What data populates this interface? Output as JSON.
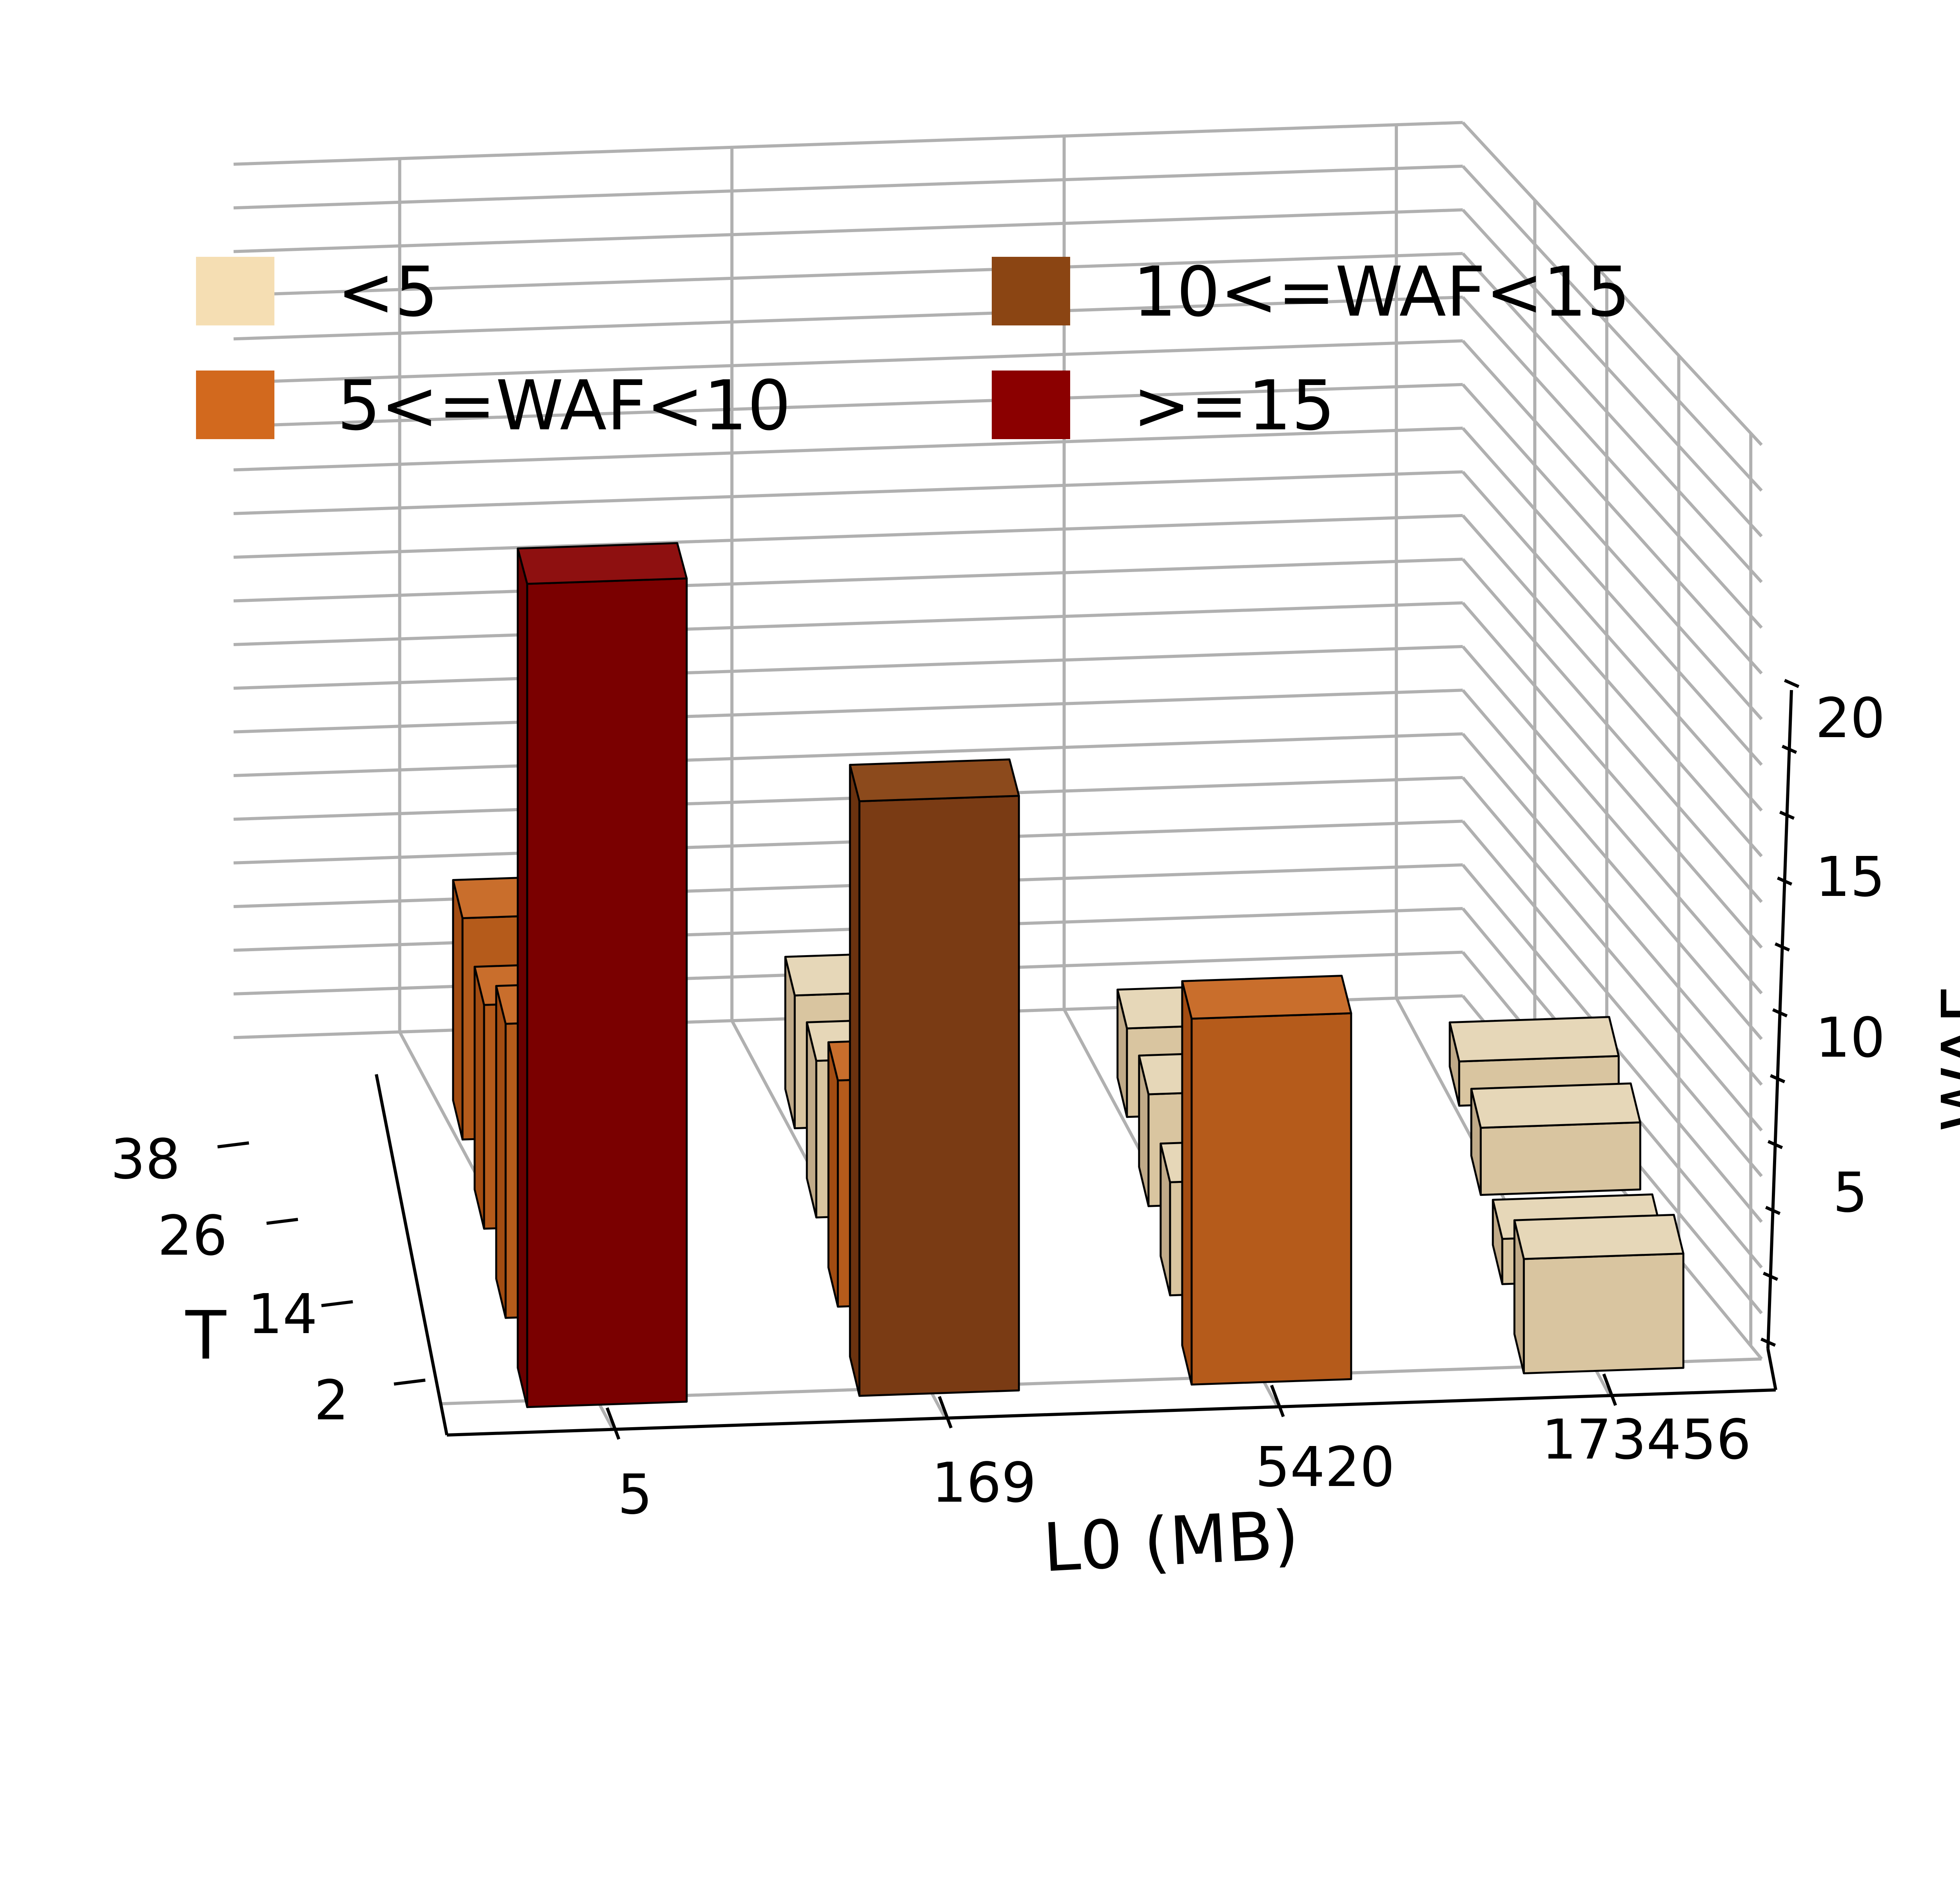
{
  "chart_data": {
    "type": "bar3d",
    "title": "",
    "xlabel": "L0 (MB)",
    "ylabel": "T",
    "zlabel": "WAF",
    "x_categories": [
      "5",
      "169",
      "5420",
      "173456"
    ],
    "y_categories": [
      "2",
      "14",
      "26",
      "38"
    ],
    "z_ticks": [
      "5",
      "10",
      "15",
      "20"
    ],
    "zlim": [
      0,
      21
    ],
    "grid": true,
    "legend_position": "top",
    "legend": [
      {
        "label": "<5",
        "color": "#f5deb3"
      },
      {
        "label": "10<=WAF<15",
        "color": "#8b4513"
      },
      {
        "label": "5<=WAF<10",
        "color": "#d2691e"
      },
      {
        "label": ">=15",
        "color": "#8b0000"
      }
    ],
    "bars": [
      {
        "x": "5",
        "t": "2",
        "waf": 19.0
      },
      {
        "x": "5",
        "t": "14",
        "waf": 7.5
      },
      {
        "x": "5",
        "t": "26",
        "waf": 6.0
      },
      {
        "x": "5",
        "t": "38",
        "waf": 6.0
      },
      {
        "x": "169",
        "t": "2",
        "waf": 14.0
      },
      {
        "x": "169",
        "t": "14",
        "waf": 6.0
      },
      {
        "x": "169",
        "t": "26",
        "waf": 4.5
      },
      {
        "x": "169",
        "t": "38",
        "waf": 4.0
      },
      {
        "x": "5420",
        "t": "2",
        "waf": 9.0
      },
      {
        "x": "5420",
        "t": "14",
        "waf": 3.5
      },
      {
        "x": "5420",
        "t": "26",
        "waf": 3.5
      },
      {
        "x": "5420",
        "t": "38",
        "waf": 3.0
      },
      {
        "x": "173456",
        "t": "2",
        "waf": 3.5
      },
      {
        "x": "173456",
        "t": "14",
        "waf": 2.0
      },
      {
        "x": "173456",
        "t": "26",
        "waf": 2.5
      },
      {
        "x": "173456",
        "t": "38",
        "waf": 2.0
      }
    ]
  }
}
